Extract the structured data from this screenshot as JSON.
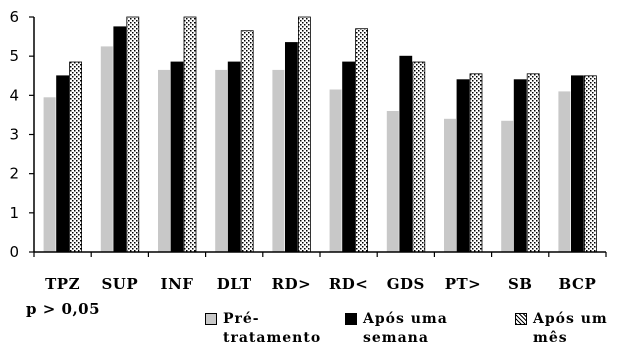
{
  "chart_data": {
    "type": "bar",
    "categories": [
      "TPZ",
      "SUP",
      "INF",
      "DLT",
      "RD>",
      "RD<",
      "GDS",
      "PT>",
      "SB",
      "BCP"
    ],
    "series": [
      {
        "name": "Pré-\ntratamento",
        "values": [
          3.95,
          5.25,
          4.65,
          4.65,
          4.65,
          4.15,
          3.6,
          3.4,
          3.35,
          4.1
        ],
        "color": "#c8c8c8",
        "pattern": "solid-gray"
      },
      {
        "name": "Após uma\nsemana",
        "values": [
          4.5,
          5.75,
          4.85,
          4.85,
          5.35,
          4.85,
          5.0,
          4.4,
          4.4,
          4.5
        ],
        "color": "#000000",
        "pattern": "solid-black"
      },
      {
        "name": "Após um\nmês",
        "values": [
          4.85,
          6.0,
          6.0,
          5.65,
          6.0,
          5.7,
          4.85,
          4.55,
          4.55,
          4.5
        ],
        "color": "#ffffff",
        "pattern": "dotted"
      }
    ],
    "yticks": [
      0,
      1,
      2,
      3,
      4,
      5,
      6
    ],
    "ylim": [
      0,
      6
    ],
    "grid": false,
    "legend_position": "bottom",
    "annotation": "p > 0,05"
  }
}
